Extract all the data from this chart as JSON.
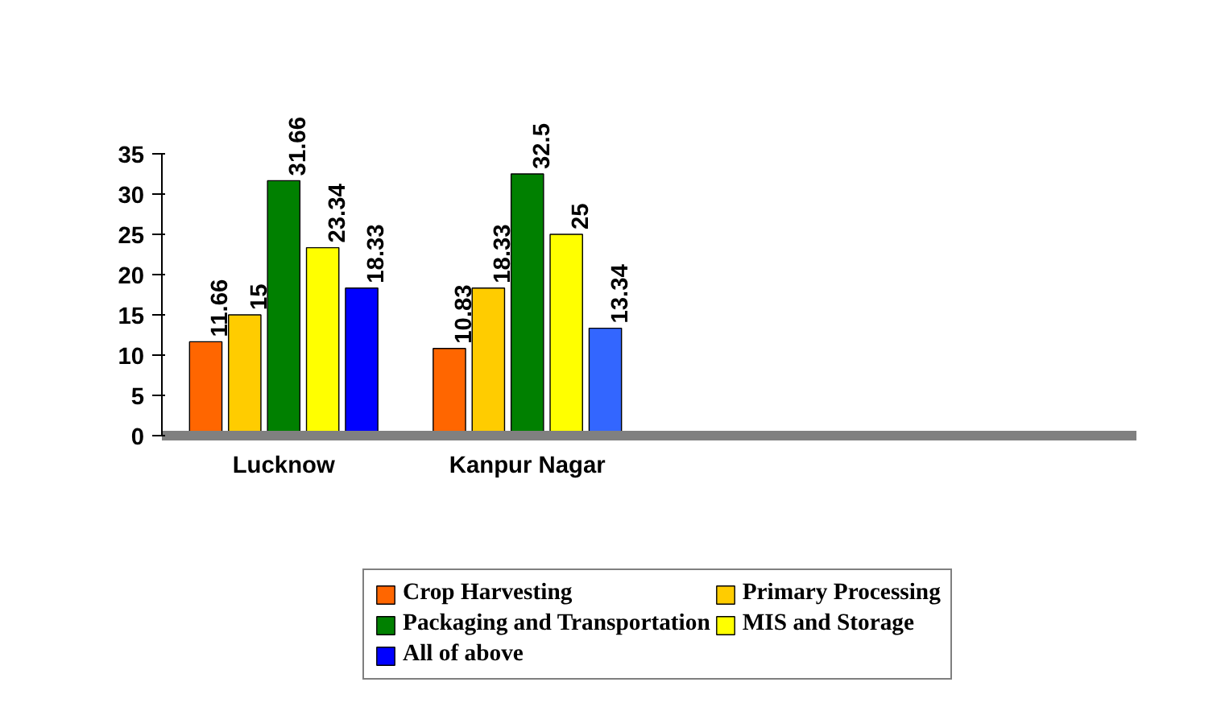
{
  "chart_data": {
    "type": "bar",
    "categories": [
      "Lucknow",
      "Kanpur Nagar",
      null,
      null
    ],
    "series": [
      {
        "name": "Crop Harvesting",
        "color": "#ff6600",
        "values": [
          11.66,
          10.83,
          null,
          null
        ]
      },
      {
        "name": "Primary Processing",
        "color": "#ffcc00",
        "values": [
          15,
          18.33,
          null,
          null
        ]
      },
      {
        "name": "Packaging and Transportation",
        "color": "#008000",
        "values": [
          31.66,
          32.5,
          null,
          null
        ]
      },
      {
        "name": "MIS and Storage",
        "color": "#ffff00",
        "values": [
          23.34,
          25,
          null,
          null
        ]
      },
      {
        "name": "All of above",
        "color": "#0000ff",
        "colors": [
          "#0000ff",
          "#3366ff",
          null,
          null
        ],
        "values": [
          18.33,
          13.34,
          null,
          null
        ]
      }
    ],
    "ylim": [
      0,
      35
    ],
    "yticks": [
      0,
      5,
      10,
      15,
      20,
      25,
      30,
      35
    ],
    "data_labels": true,
    "grid": false,
    "legend": "bottom"
  }
}
